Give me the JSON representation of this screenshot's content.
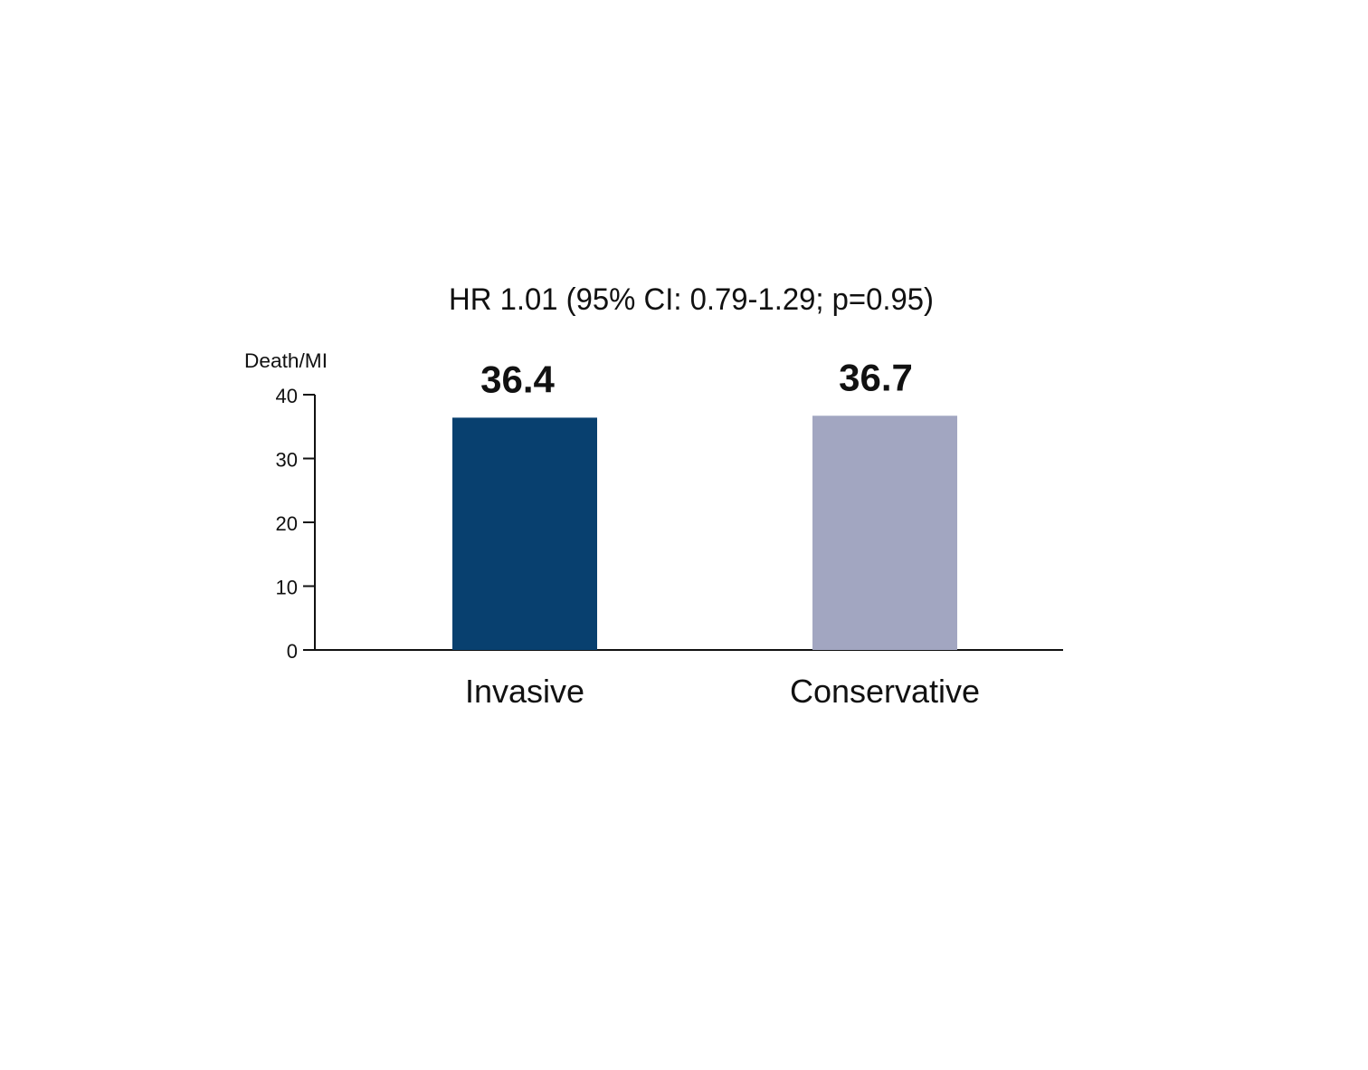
{
  "chart_data": {
    "type": "bar",
    "title": "HR 1.01 (95% CI: 0.79-1.29; p=0.95)",
    "xlabel": "",
    "ylabel": "Death/MI",
    "ylim": [
      0,
      40
    ],
    "yticks": [
      0,
      10,
      20,
      30,
      40
    ],
    "grid": false,
    "categories": [
      "Invasive",
      "Conservative"
    ],
    "values": [
      36.4,
      36.7
    ],
    "value_labels": [
      "36.4",
      "36.7"
    ],
    "colors": [
      "#08406f",
      "#a2a6c1"
    ]
  }
}
